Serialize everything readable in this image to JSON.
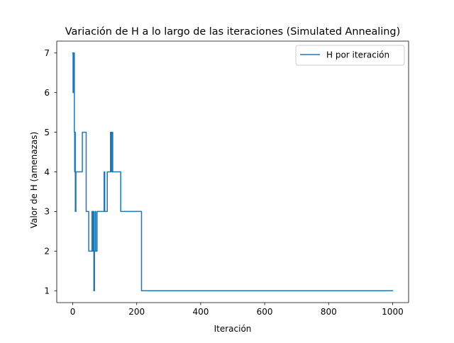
{
  "chart_data": {
    "type": "line",
    "title": "Variación de H a lo largo de las iteraciones (Simulated Annealing)",
    "xlabel": "Iteración",
    "ylabel": "Valor de H (amenazas)",
    "xlim": [
      -50,
      1050
    ],
    "ylim": [
      0.7,
      7.3
    ],
    "xticks": [
      0,
      200,
      400,
      600,
      800,
      1000
    ],
    "yticks": [
      1,
      2,
      3,
      4,
      5,
      6,
      7
    ],
    "xtick_labels": [
      "0",
      "200",
      "400",
      "600",
      "800",
      "1000"
    ],
    "ytick_labels": [
      "1",
      "2",
      "3",
      "4",
      "5",
      "6",
      "7"
    ],
    "grid": false,
    "legend_position": "top-right",
    "series": [
      {
        "name": "H por iteración",
        "color": "#1f77b4",
        "x": [
          0,
          1,
          1,
          2,
          2,
          3,
          3,
          4,
          4,
          5,
          5,
          6,
          6,
          7,
          7,
          8,
          8,
          10,
          10,
          30,
          30,
          32,
          32,
          42,
          42,
          50,
          50,
          60,
          60,
          62,
          62,
          64,
          64,
          66,
          66,
          68,
          68,
          70,
          70,
          72,
          72,
          76,
          76,
          78,
          78,
          98,
          98,
          100,
          100,
          108,
          108,
          118,
          118,
          121,
          121,
          123,
          123,
          125,
          125,
          127,
          127,
          150,
          150,
          215,
          215,
          1000
        ],
        "y": [
          7,
          7,
          6,
          6,
          7,
          7,
          6,
          6,
          7,
          7,
          5,
          5,
          4,
          4,
          5,
          5,
          3,
          3,
          4,
          4,
          5,
          5,
          5,
          5,
          3,
          3,
          2,
          2,
          3,
          3,
          2,
          2,
          3,
          3,
          1,
          1,
          2,
          2,
          3,
          3,
          2,
          2,
          3,
          3,
          3,
          3,
          4,
          4,
          3,
          3,
          4,
          4,
          5,
          5,
          4,
          4,
          5,
          5,
          4,
          4,
          4,
          4,
          3,
          3,
          1,
          1
        ]
      }
    ]
  }
}
